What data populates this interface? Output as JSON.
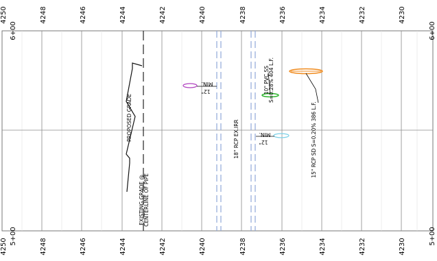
{
  "elevation_axis": {
    "top": [
      "4250",
      "4248",
      "4246",
      "4244",
      "4242",
      "4240",
      "4238",
      "4236",
      "4234",
      "4232",
      "4230"
    ],
    "bottom": [
      "4250",
      "4248",
      "4246",
      "4244",
      "4242",
      "4240",
      "4238",
      "4236",
      "4234",
      "4232",
      "4230"
    ]
  },
  "stations": {
    "left_top": "6+00",
    "left_bottom": "5+00",
    "right_top": "6+00",
    "right_bottom": "5+00"
  },
  "annotations": {
    "proposed_grade": "PROPOSED GRADE",
    "existing_grade_line1": "EXISTING GRADE @",
    "existing_grade_line2": "CENTERLINE OF PIPE",
    "rcp_18": "18\" RCP EX.IRR",
    "pvc_ss_line1": "10\" PVC SS",
    "pvc_ss_line2": "S=0.28% 404 L.F.",
    "rcp_sd": "15\" RCP SD S=0.20% 386 L.F.",
    "min_upper_1": "MIN.",
    "min_upper_2": "12\"",
    "min_lower_1": "MIN.",
    "min_lower_2": "12\""
  },
  "colors": {
    "grid": "#8a8a8a",
    "grid_minor": "#d8d8d8",
    "dashed_pipe": "#8fa8d8",
    "pvc_ellipse": "#2db52d",
    "rcp_sd_ellipse": "#f08a1c",
    "upper_min_ellipse": "#b040c0",
    "lower_min_ellipse": "#7ad0e8"
  }
}
